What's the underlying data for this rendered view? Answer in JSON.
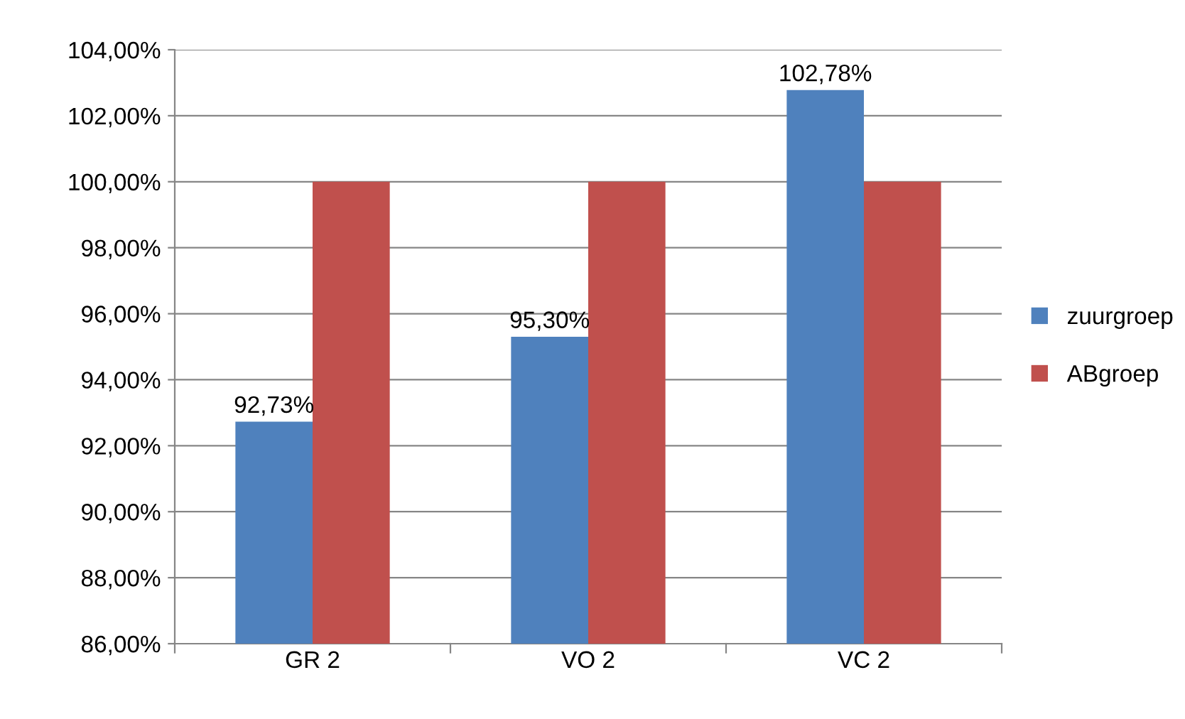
{
  "chart_data": {
    "type": "bar",
    "categories": [
      "GR 2",
      "VO 2",
      "VC 2"
    ],
    "series": [
      {
        "name": "zuurgroep",
        "color": "#4f81bd",
        "values": [
          92.73,
          95.3,
          102.78
        ],
        "value_labels": [
          "92,73%",
          "95,30%",
          "102,78%"
        ]
      },
      {
        "name": "ABgroep",
        "color": "#c0504d",
        "values": [
          100,
          100,
          100
        ]
      }
    ],
    "ylim": [
      86,
      104
    ],
    "yticks": [
      {
        "value": 86,
        "label": "86,00%"
      },
      {
        "value": 88,
        "label": "88,00%"
      },
      {
        "value": 90,
        "label": "90,00%"
      },
      {
        "value": 92,
        "label": "92,00%"
      },
      {
        "value": 94,
        "label": "94,00%"
      },
      {
        "value": 96,
        "label": "96,00%"
      },
      {
        "value": 98,
        "label": "98,00%"
      },
      {
        "value": 100,
        "label": "100,00%"
      },
      {
        "value": 102,
        "label": "102,00%"
      },
      {
        "value": 104,
        "label": "104,00%"
      }
    ],
    "grid": "y",
    "legend": "right"
  }
}
